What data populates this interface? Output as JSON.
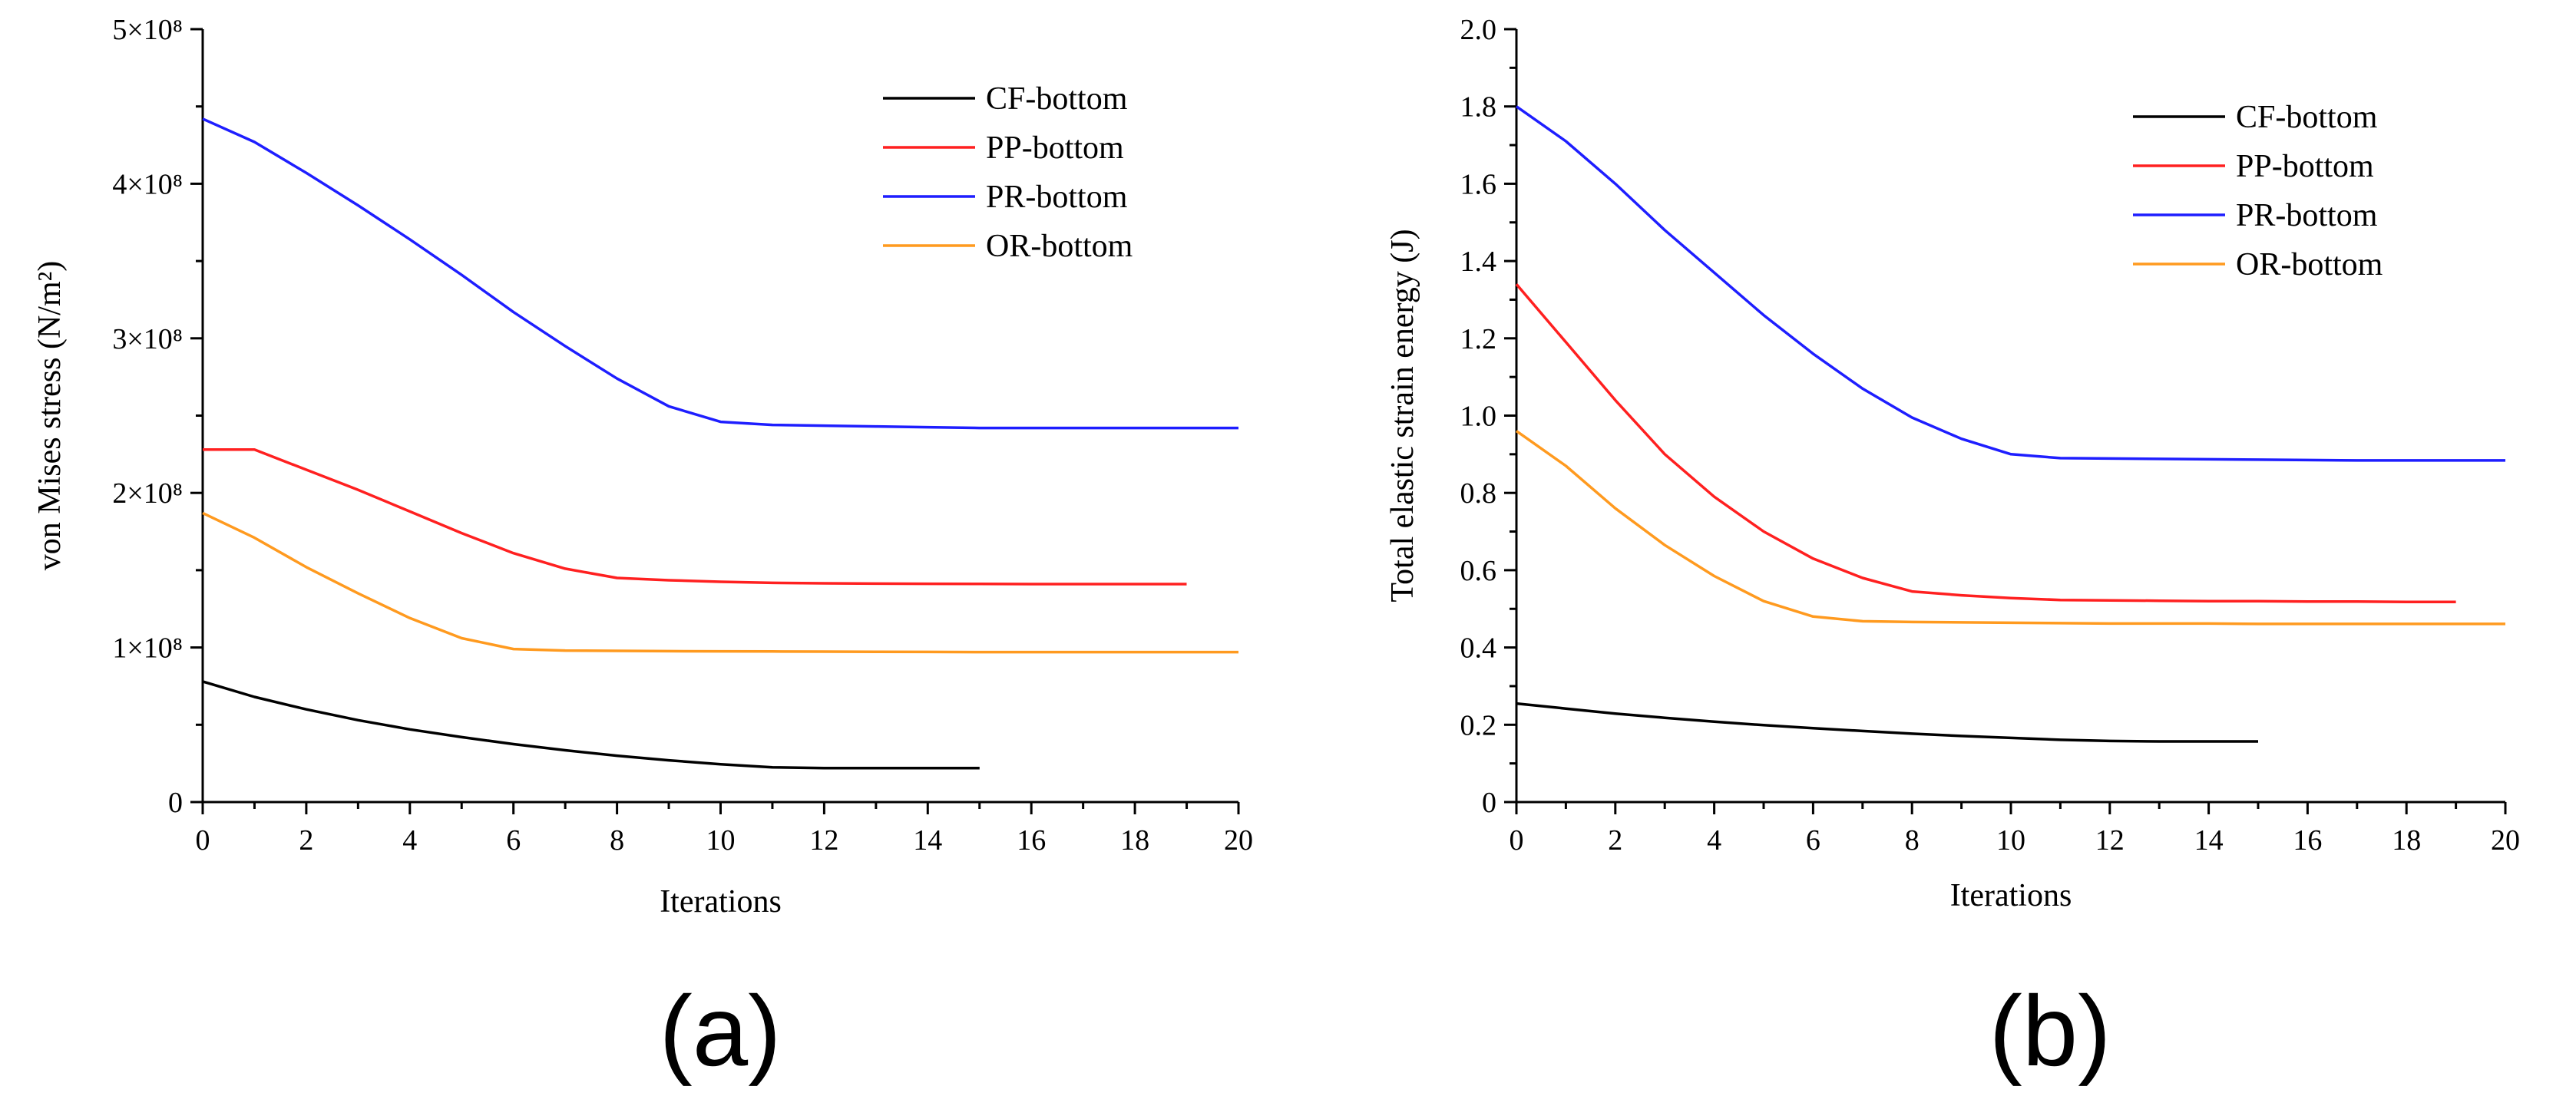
{
  "chart_data": [
    {
      "type": "line",
      "panel_label": "(a)",
      "xlabel": "Iterations",
      "ylabel": "von Mises stress (N/m²)",
      "xlim": [
        0,
        20
      ],
      "ylim": [
        0,
        500000000
      ],
      "xticks": [
        0,
        2,
        4,
        6,
        8,
        10,
        12,
        14,
        16,
        18,
        20
      ],
      "yticks": [
        {
          "value": 0,
          "label": "0"
        },
        {
          "value": 100000000,
          "label": "1×10⁸"
        },
        {
          "value": 200000000,
          "label": "2×10⁸"
        },
        {
          "value": 300000000,
          "label": "3×10⁸"
        },
        {
          "value": 400000000,
          "label": "4×10⁸"
        },
        {
          "value": 500000000,
          "label": "5×10⁸"
        }
      ],
      "grid": false,
      "legend_position": "top-right",
      "series": [
        {
          "name": "CF-bottom",
          "color": "#000000",
          "x": [
            0,
            1,
            2,
            3,
            4,
            5,
            6,
            7,
            8,
            9,
            10,
            11,
            12,
            13,
            14,
            15
          ],
          "y": [
            78000000,
            68000000,
            60000000,
            53000000,
            47000000,
            42000000,
            37500000,
            33500000,
            30000000,
            27000000,
            24500000,
            22500000,
            22000000,
            22000000,
            22000000,
            22000000
          ]
        },
        {
          "name": "PP-bottom",
          "color": "#ff2020",
          "x": [
            0,
            1,
            2,
            3,
            4,
            5,
            6,
            7,
            8,
            9,
            10,
            11,
            12,
            13,
            14,
            15,
            16,
            17,
            18,
            19
          ],
          "y": [
            228000000,
            228000000,
            215000000,
            202000000,
            188000000,
            174000000,
            161000000,
            151000000,
            145000000,
            143500000,
            142500000,
            141800000,
            141500000,
            141300000,
            141200000,
            141100000,
            141000000,
            141000000,
            141000000,
            141000000
          ]
        },
        {
          "name": "PR-bottom",
          "color": "#1e1eff",
          "x": [
            0,
            1,
            2,
            3,
            4,
            5,
            6,
            7,
            8,
            9,
            10,
            11,
            12,
            13,
            14,
            15,
            16,
            17,
            18,
            19,
            20
          ],
          "y": [
            442000000,
            427000000,
            407000000,
            386000000,
            364000000,
            341000000,
            317000000,
            295000000,
            274000000,
            256000000,
            246000000,
            244000000,
            243500000,
            243000000,
            242500000,
            242000000,
            242000000,
            242000000,
            242000000,
            242000000,
            242000000
          ]
        },
        {
          "name": "OR-bottom",
          "color": "#ff9a1f",
          "x": [
            0,
            1,
            2,
            3,
            4,
            5,
            6,
            7,
            8,
            9,
            10,
            11,
            12,
            13,
            14,
            15,
            16,
            17,
            18,
            19,
            20
          ],
          "y": [
            187000000,
            171000000,
            152000000,
            135000000,
            119000000,
            106000000,
            99000000,
            98000000,
            97800000,
            97600000,
            97500000,
            97400000,
            97300000,
            97200000,
            97100000,
            97000000,
            97000000,
            97000000,
            97000000,
            97000000,
            97000000
          ]
        }
      ]
    },
    {
      "type": "line",
      "panel_label": "(b)",
      "xlabel": "Iterations",
      "ylabel": "Total elastic strain energy (J)",
      "xlim": [
        0,
        20
      ],
      "ylim": [
        0,
        2.0
      ],
      "xticks": [
        0,
        2,
        4,
        6,
        8,
        10,
        12,
        14,
        16,
        18,
        20
      ],
      "yticks": [
        {
          "value": 0,
          "label": "0"
        },
        {
          "value": 0.2,
          "label": "0.2"
        },
        {
          "value": 0.4,
          "label": "0.4"
        },
        {
          "value": 0.6,
          "label": "0.6"
        },
        {
          "value": 0.8,
          "label": "0.8"
        },
        {
          "value": 1.0,
          "label": "1.0"
        },
        {
          "value": 1.2,
          "label": "1.2"
        },
        {
          "value": 1.4,
          "label": "1.4"
        },
        {
          "value": 1.6,
          "label": "1.6"
        },
        {
          "value": 1.8,
          "label": "1.8"
        },
        {
          "value": 2.0,
          "label": "2.0"
        }
      ],
      "grid": false,
      "legend_position": "top-right",
      "series": [
        {
          "name": "CF-bottom",
          "color": "#000000",
          "x": [
            0,
            1,
            2,
            3,
            4,
            5,
            6,
            7,
            8,
            9,
            10,
            11,
            12,
            13,
            14,
            15
          ],
          "y": [
            0.255,
            0.242,
            0.229,
            0.218,
            0.208,
            0.199,
            0.191,
            0.184,
            0.177,
            0.171,
            0.166,
            0.161,
            0.158,
            0.157,
            0.157,
            0.157
          ]
        },
        {
          "name": "PP-bottom",
          "color": "#ff2020",
          "x": [
            0,
            1,
            2,
            3,
            4,
            5,
            6,
            7,
            8,
            9,
            10,
            11,
            12,
            13,
            14,
            15,
            16,
            17,
            18,
            19
          ],
          "y": [
            1.34,
            1.19,
            1.04,
            0.9,
            0.79,
            0.7,
            0.63,
            0.58,
            0.545,
            0.535,
            0.528,
            0.523,
            0.522,
            0.521,
            0.52,
            0.52,
            0.519,
            0.519,
            0.518,
            0.518
          ]
        },
        {
          "name": "PR-bottom",
          "color": "#1e1eff",
          "x": [
            0,
            1,
            2,
            3,
            4,
            5,
            6,
            7,
            8,
            9,
            10,
            11,
            12,
            13,
            14,
            15,
            16,
            17,
            18,
            19,
            20
          ],
          "y": [
            1.8,
            1.71,
            1.6,
            1.48,
            1.37,
            1.26,
            1.16,
            1.07,
            0.995,
            0.94,
            0.9,
            0.89,
            0.889,
            0.888,
            0.887,
            0.886,
            0.885,
            0.884,
            0.884,
            0.884,
            0.884
          ]
        },
        {
          "name": "OR-bottom",
          "color": "#ff9a1f",
          "x": [
            0,
            1,
            2,
            3,
            4,
            5,
            6,
            7,
            8,
            9,
            10,
            11,
            12,
            13,
            14,
            15,
            16,
            17,
            18,
            19,
            20
          ],
          "y": [
            0.96,
            0.87,
            0.76,
            0.665,
            0.585,
            0.52,
            0.48,
            0.468,
            0.466,
            0.465,
            0.464,
            0.463,
            0.462,
            0.462,
            0.462,
            0.461,
            0.461,
            0.461,
            0.461,
            0.461,
            0.461
          ]
        }
      ]
    }
  ]
}
